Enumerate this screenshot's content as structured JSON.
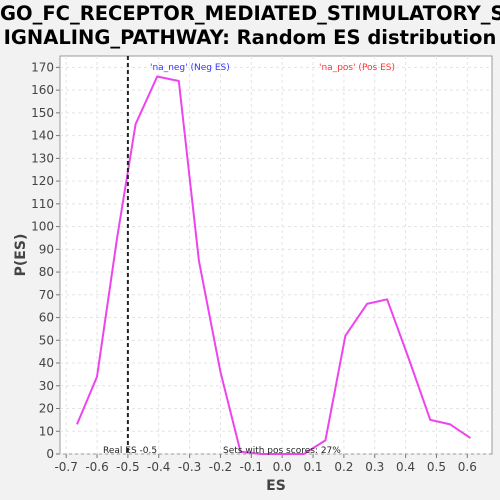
{
  "title_line1": "GO_FC_RECEPTOR_MEDIATED_STIMULATORY_S",
  "title_line2": "IGNALING_PATHWAY: Random ES distribution",
  "chart_data": {
    "type": "line",
    "title": "GO_FC_RECEPTOR_MEDIATED_STIMULATORY_SIGNALING_PATHWAY: Random ES distribution",
    "xlabel": "ES",
    "ylabel": "P(ES)",
    "xlim": [
      -0.72,
      0.68
    ],
    "ylim": [
      0,
      175
    ],
    "xticks": [
      -0.7,
      -0.6,
      -0.5,
      -0.4,
      -0.3,
      -0.2,
      -0.1,
      0.0,
      0.1,
      0.2,
      0.3,
      0.4,
      0.5,
      0.6
    ],
    "xtick_labels": [
      "-0.7",
      "-0.6",
      "-0.5",
      "-0.4",
      "-0.3",
      "-0.2",
      "-0.1",
      "0.0",
      "0.1",
      "0.2",
      "0.3",
      "0.4",
      "0.5",
      "0.6"
    ],
    "yticks": [
      0,
      10,
      20,
      30,
      40,
      50,
      60,
      70,
      80,
      90,
      100,
      110,
      120,
      130,
      140,
      150,
      160,
      170
    ],
    "grid": true,
    "series": [
      {
        "color": "#ee44ee",
        "x": [
          -0.665,
          -0.6,
          -0.535,
          -0.475,
          -0.405,
          -0.335,
          -0.27,
          -0.2,
          -0.135,
          -0.07,
          0.0,
          0.07,
          0.14,
          0.205,
          0.275,
          0.34,
          0.41,
          0.48,
          0.545,
          0.61
        ],
        "y": [
          13,
          34,
          95,
          145,
          166,
          164,
          85,
          36,
          1,
          0,
          0,
          0,
          6,
          52,
          66,
          68,
          42,
          15,
          13,
          7
        ]
      }
    ],
    "real_es": -0.5,
    "real_es_label": "Real ES -0.5",
    "neg_label": "'na_neg' (Neg ES)",
    "pos_label": "'na_pos' (Pos ES)",
    "neg_color": "#3333ff",
    "pos_color": "#ff3333",
    "pos_scores_label": "Sets with pos scores: 27%"
  }
}
